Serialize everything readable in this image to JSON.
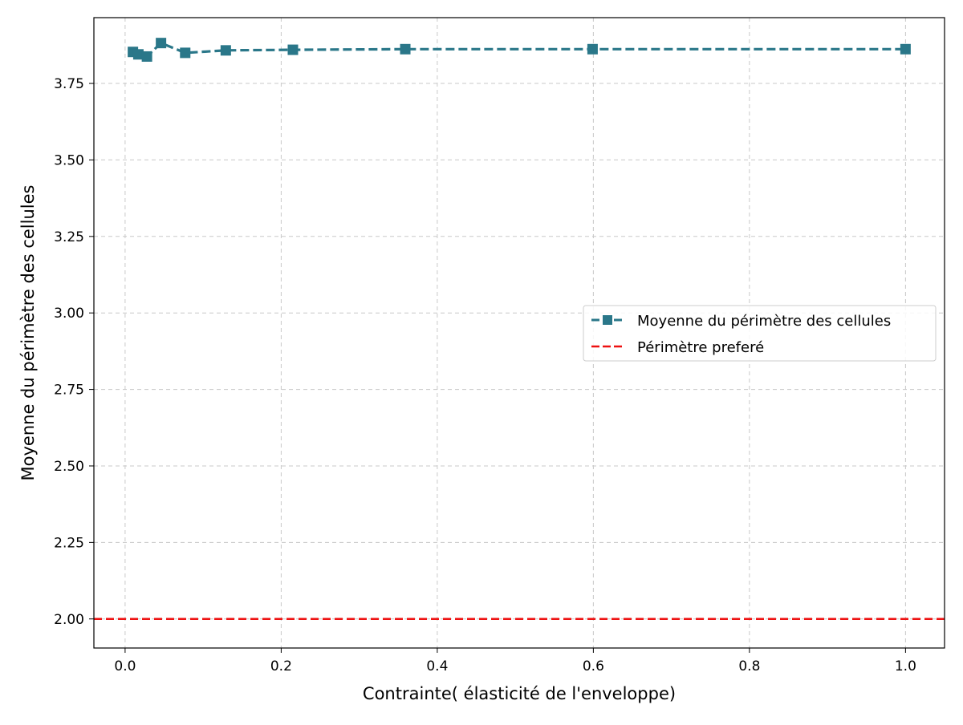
{
  "chart_data": {
    "type": "line",
    "title": "",
    "xlabel": "Contrainte( élasticité de l'enveloppe)",
    "ylabel": "Moyenne du périmètre des cellules",
    "xlim": [
      -0.04,
      1.05
    ],
    "ylim": [
      1.905,
      3.965
    ],
    "xticks": [
      0.0,
      0.2,
      0.4,
      0.6,
      0.8,
      1.0
    ],
    "xtick_labels": [
      "0.0",
      "0.2",
      "0.4",
      "0.6",
      "0.8",
      "1.0"
    ],
    "yticks": [
      2.0,
      2.25,
      2.5,
      2.75,
      3.0,
      3.25,
      3.5,
      3.75
    ],
    "ytick_labels": [
      "2.00",
      "2.25",
      "2.50",
      "2.75",
      "3.00",
      "3.25",
      "3.50",
      "3.75"
    ],
    "grid": true,
    "legend_position": "center-right",
    "series": [
      {
        "name": "Moyenne du périmètre des cellules",
        "color": "#2a7789",
        "marker": "square",
        "line_style": "dashed",
        "x": [
          0.01,
          0.017,
          0.028,
          0.046,
          0.077,
          0.129,
          0.215,
          0.359,
          0.599,
          1.0
        ],
        "y": [
          3.853,
          3.845,
          3.838,
          3.882,
          3.85,
          3.858,
          3.86,
          3.862,
          3.862,
          3.862
        ]
      },
      {
        "name": "Périmètre preferé",
        "color": "#ee1111",
        "line_style": "dashed",
        "type": "hline",
        "y_value": 2.0
      }
    ]
  }
}
